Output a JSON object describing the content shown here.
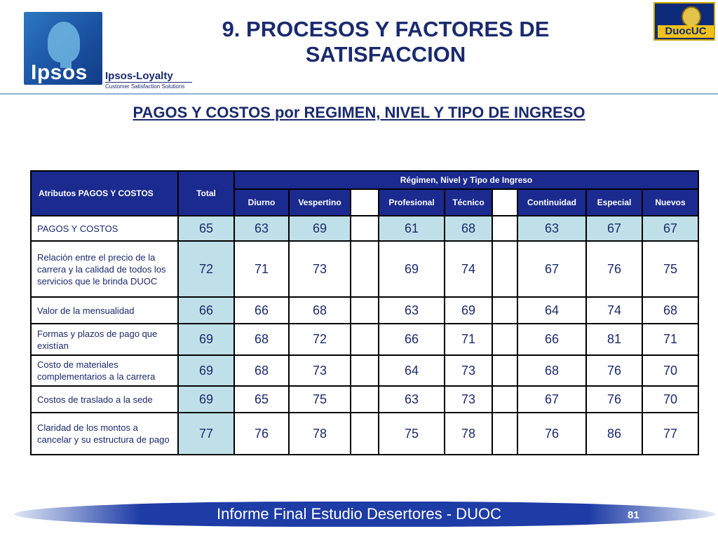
{
  "header": {
    "logo_word": "Ipsos",
    "loyalty": "Ipsos-Loyalty",
    "loyalty_sub": "Customer Satisfaction Solutions",
    "title_line1": "9. PROCESOS Y FACTORES DE",
    "title_line2": "SATISFACCION",
    "duoc_logo": "DuocUC"
  },
  "subtitle": "PAGOS Y COSTOS por REGIMEN, NIVEL Y TIPO DE INGRESO",
  "table": {
    "attr_header": "Atributos PAGOS Y COSTOS",
    "total_header": "Total",
    "group_header": "Régimen, Nivel y Tipo de Ingreso",
    "columns": [
      "Diurno",
      "Vespertino",
      "Profesional",
      "Técnico",
      "Continuidad",
      "Especial",
      "Nuevos"
    ],
    "rows": [
      {
        "label": "PAGOS Y COSTOS",
        "total": "65",
        "values": [
          "63",
          "69",
          "61",
          "68",
          "63",
          "67",
          "67"
        ]
      },
      {
        "label": "Relación entre el precio de la carrera y la calidad de todos los servicios que le brinda DUOC",
        "total": "72",
        "values": [
          "71",
          "73",
          "69",
          "74",
          "67",
          "76",
          "75"
        ]
      },
      {
        "label": "Valor de la mensualidad",
        "total": "66",
        "values": [
          "66",
          "68",
          "63",
          "69",
          "64",
          "74",
          "68"
        ]
      },
      {
        "label": "Formas y plazos de pago que existían",
        "total": "69",
        "values": [
          "68",
          "72",
          "66",
          "71",
          "66",
          "81",
          "71"
        ]
      },
      {
        "label": "Costo de materiales complementarios a la carrera",
        "total": "69",
        "values": [
          "68",
          "73",
          "64",
          "73",
          "68",
          "76",
          "70"
        ]
      },
      {
        "label": "Costos de traslado a la sede",
        "total": "69",
        "values": [
          "65",
          "75",
          "63",
          "73",
          "67",
          "76",
          "70"
        ]
      },
      {
        "label": "Claridad de los montos a cancelar y su estructura de pago",
        "total": "77",
        "values": [
          "76",
          "78",
          "75",
          "78",
          "76",
          "86",
          "77"
        ]
      }
    ]
  },
  "footer": {
    "text": "Informe Final Estudio Desertores - DUOC",
    "page": "81"
  }
}
